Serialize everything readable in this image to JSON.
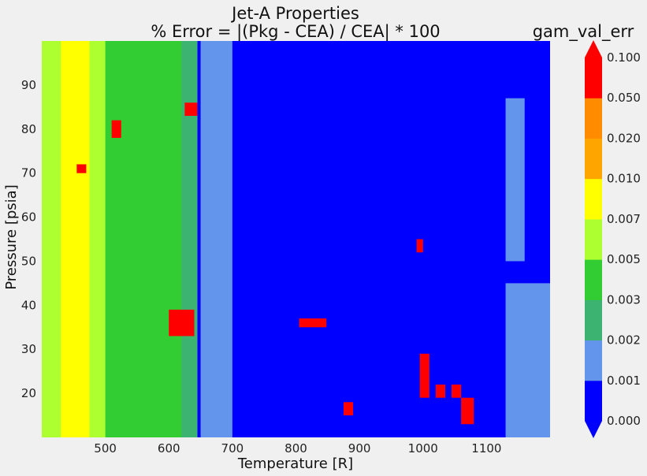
{
  "chart_data": {
    "type": "heatmap",
    "title_line1": "Jet-A Properties",
    "title_line2": "% Error = |(Pkg - CEA) / CEA| * 100",
    "xlabel": "Temperature [R]",
    "ylabel": "Pressure [psia]",
    "xlim": [
      400,
      1200
    ],
    "ylim": [
      10,
      100
    ],
    "x_ticks": [
      "500",
      "600",
      "700",
      "800",
      "900",
      "1000",
      "1100"
    ],
    "y_ticks": [
      "20",
      "30",
      "40",
      "50",
      "60",
      "70",
      "80",
      "90"
    ],
    "colorbar": {
      "label": "gam_val_err",
      "levels": [
        "0.000",
        "0.001",
        "0.002",
        "0.003",
        "0.005",
        "0.007",
        "0.010",
        "0.020",
        "0.050",
        "0.100"
      ],
      "colors": [
        "#0000ff",
        "#6495ed",
        "#3cb371",
        "#32cd32",
        "#adff2f",
        "#ffff00",
        "#ffa500",
        "#ff8c00",
        "#ff0000"
      ],
      "extend": "both"
    },
    "regions": [
      {
        "x0": 400,
        "x1": 1200,
        "y0": 10,
        "y1": 100,
        "level": 0
      },
      {
        "x0": 650,
        "x1": 700,
        "y0": 10,
        "y1": 100,
        "level": 1
      },
      {
        "x0": 1130,
        "x1": 1200,
        "y0": 10,
        "y1": 45,
        "level": 1
      },
      {
        "x0": 1130,
        "x1": 1160,
        "y0": 50,
        "y1": 87,
        "level": 1
      },
      {
        "x0": 400,
        "x1": 645,
        "y0": 10,
        "y1": 100,
        "level": 2
      },
      {
        "x0": 400,
        "x1": 620,
        "y0": 10,
        "y1": 100,
        "level": 3
      },
      {
        "x0": 400,
        "x1": 500,
        "y0": 10,
        "y1": 100,
        "level": 4
      },
      {
        "x0": 430,
        "x1": 475,
        "y0": 10,
        "y1": 100,
        "level": 5
      },
      {
        "x0": 600,
        "x1": 640,
        "y0": 33,
        "y1": 39,
        "level": 8
      },
      {
        "x0": 805,
        "x1": 848,
        "y0": 35,
        "y1": 37,
        "level": 8
      },
      {
        "x0": 625,
        "x1": 645,
        "y0": 83,
        "y1": 86,
        "level": 8
      },
      {
        "x0": 455,
        "x1": 470,
        "y0": 70,
        "y1": 72,
        "level": 8
      },
      {
        "x0": 995,
        "x1": 1010,
        "y0": 19,
        "y1": 29,
        "level": 8
      },
      {
        "x0": 1020,
        "x1": 1035,
        "y0": 19,
        "y1": 22,
        "level": 8
      },
      {
        "x0": 1045,
        "x1": 1060,
        "y0": 19,
        "y1": 22,
        "level": 8
      },
      {
        "x0": 1060,
        "x1": 1080,
        "y0": 13,
        "y1": 19,
        "level": 8
      },
      {
        "x0": 875,
        "x1": 890,
        "y0": 15,
        "y1": 18,
        "level": 8
      },
      {
        "x0": 510,
        "x1": 525,
        "y0": 78,
        "y1": 82,
        "level": 8
      },
      {
        "x0": 990,
        "x1": 1000,
        "y0": 52,
        "y1": 55,
        "level": 8
      }
    ]
  }
}
